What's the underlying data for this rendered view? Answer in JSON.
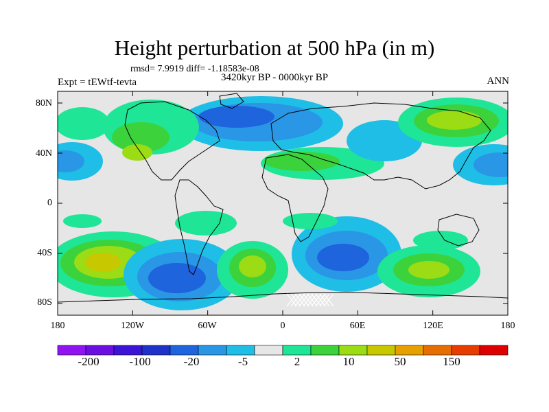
{
  "title": "Height perturbation at 500 hPa (in m)",
  "stats_line": "rmsd= 7.9919 diff= -1.18583e-08",
  "experiment_label": "Expt = tEWtf-tevta",
  "period_label": "3420kyr BP - 0000kyr BP",
  "season_label": "ANN",
  "lat_ticks": [
    "80N",
    "40N",
    "0",
    "40S",
    "80S"
  ],
  "lon_ticks": [
    "180",
    "120W",
    "60W",
    "0",
    "60E",
    "120E",
    "180"
  ],
  "colorbar": {
    "colors": [
      "#8f14f0",
      "#6a0fe0",
      "#3c14d6",
      "#1e32c8",
      "#1e64dc",
      "#2a96e6",
      "#1ebee6",
      "#e6e6e6",
      "#1ee696",
      "#3cd23c",
      "#9bdc14",
      "#c8c800",
      "#e6a000",
      "#e66e00",
      "#e63c00",
      "#dc0000"
    ],
    "labels": [
      "-200",
      "-100",
      "-20",
      "-5",
      "2",
      "10",
      "50",
      "150"
    ]
  },
  "field_colors": {
    "background": "#e6e6e6",
    "pos_weak": "#1ee696",
    "pos_mid": "#3cd23c",
    "pos_strong": "#9bdc14",
    "pos_peak": "#c8c800",
    "pos_max": "#e6a000",
    "neg_weak": "#1ebee6",
    "neg_mid": "#2a96e6",
    "neg_strong": "#1e64dc",
    "neg_peak": "#1e32c8"
  }
}
